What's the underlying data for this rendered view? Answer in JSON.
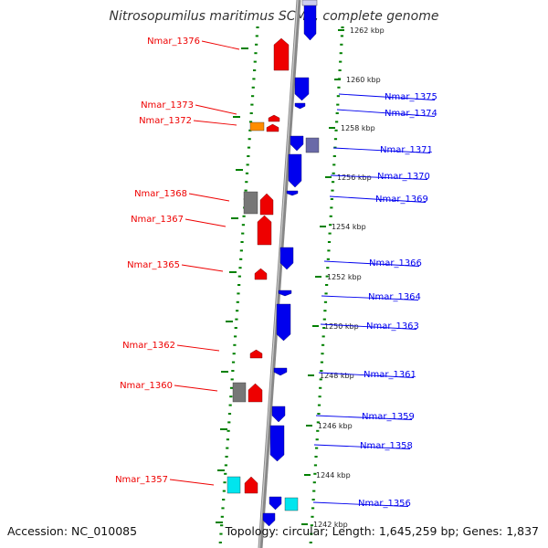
{
  "title": "Nitrosopumilus maritimus SCM1, complete genome",
  "footer": {
    "accession": "Accession: NC_010085",
    "summary": "Topology: circular; Length: 1,645,259 bp; Genes: 1,837"
  },
  "colors": {
    "forward_strand": "#0000ee",
    "reverse_strand": "#ee0000",
    "backbone": "#888888",
    "tick": "#008000",
    "orange_feature": "#ff8c00",
    "gray_feature": "#777777",
    "cyan_feature": "#00e5ee",
    "slate_feature": "#6a6aa8"
  },
  "kbp_markers": [
    {
      "label": "1262 kbp"
    },
    {
      "label": "1260 kbp"
    },
    {
      "label": "1258 kbp"
    },
    {
      "label": "1256 kbp"
    },
    {
      "label": "1254 kbp"
    },
    {
      "label": "1252 kbp"
    },
    {
      "label": "1250 kbp"
    },
    {
      "label": "1248 kbp"
    },
    {
      "label": "1246 kbp"
    },
    {
      "label": "1244 kbp"
    },
    {
      "label": "1242 kbp"
    }
  ],
  "gene_labels_left": [
    {
      "name": "Nmar_1376"
    },
    {
      "name": "Nmar_1373"
    },
    {
      "name": "Nmar_1372"
    },
    {
      "name": "Nmar_1368"
    },
    {
      "name": "Nmar_1367"
    },
    {
      "name": "Nmar_1365"
    },
    {
      "name": "Nmar_1362"
    },
    {
      "name": "Nmar_1360"
    },
    {
      "name": "Nmar_1357"
    }
  ],
  "gene_labels_right": [
    {
      "name": "Nmar_1375"
    },
    {
      "name": "Nmar_1374"
    },
    {
      "name": "Nmar_1371"
    },
    {
      "name": "Nmar_1370"
    },
    {
      "name": "Nmar_1369"
    },
    {
      "name": "Nmar_1366"
    },
    {
      "name": "Nmar_1364"
    },
    {
      "name": "Nmar_1363"
    },
    {
      "name": "Nmar_1361"
    },
    {
      "name": "Nmar_1359"
    },
    {
      "name": "Nmar_1358"
    },
    {
      "name": "Nmar_1356"
    }
  ]
}
